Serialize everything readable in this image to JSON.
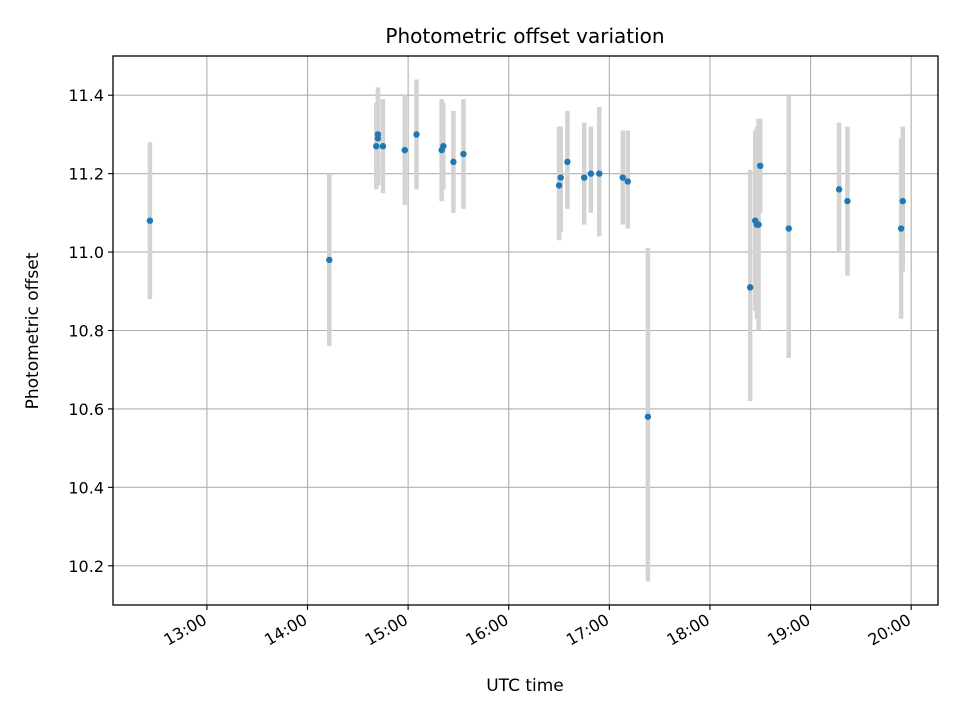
{
  "chart_data": {
    "type": "scatter",
    "title": "Photometric offset variation",
    "xlabel": "UTC time",
    "ylabel": "Photometric offset",
    "xlim": [
      "12:04",
      "20:16"
    ],
    "ylim": [
      10.1,
      11.5
    ],
    "grid": true,
    "x_ticks": [
      "13:00",
      "14:00",
      "15:00",
      "16:00",
      "17:00",
      "18:00",
      "19:00",
      "20:00"
    ],
    "y_ticks": [
      "10.2",
      "10.4",
      "10.6",
      "10.8",
      "11.0",
      "11.2",
      "11.4"
    ],
    "colors": {
      "points": "#1f77b4",
      "error_bars": "#d3d3d3",
      "grid": "#b0b0b0"
    },
    "series": [
      {
        "error_bars": true,
        "points": [
          {
            "x": "12:26",
            "y": 11.08,
            "lo": 10.88,
            "hi": 11.28
          },
          {
            "x": "14:13",
            "y": 10.98,
            "lo": 10.76,
            "hi": 11.2
          },
          {
            "x": "14:41",
            "y": 11.27,
            "lo": 11.16,
            "hi": 11.38
          },
          {
            "x": "14:42",
            "y": 11.3,
            "lo": 11.18,
            "hi": 11.42
          },
          {
            "x": "14:42",
            "y": 11.29,
            "lo": 11.17,
            "hi": 11.41
          },
          {
            "x": "14:45",
            "y": 11.27,
            "lo": 11.15,
            "hi": 11.39
          },
          {
            "x": "14:58",
            "y": 11.26,
            "lo": 11.12,
            "hi": 11.4
          },
          {
            "x": "15:05",
            "y": 11.3,
            "lo": 11.16,
            "hi": 11.44
          },
          {
            "x": "15:20",
            "y": 11.26,
            "lo": 11.13,
            "hi": 11.39
          },
          {
            "x": "15:21",
            "y": 11.27,
            "lo": 11.16,
            "hi": 11.38
          },
          {
            "x": "15:27",
            "y": 11.23,
            "lo": 11.1,
            "hi": 11.36
          },
          {
            "x": "15:33",
            "y": 11.25,
            "lo": 11.11,
            "hi": 11.39
          },
          {
            "x": "16:30",
            "y": 11.17,
            "lo": 11.03,
            "hi": 11.32
          },
          {
            "x": "16:31",
            "y": 11.19,
            "lo": 11.05,
            "hi": 11.32
          },
          {
            "x": "16:35",
            "y": 11.23,
            "lo": 11.11,
            "hi": 11.36
          },
          {
            "x": "16:45",
            "y": 11.19,
            "lo": 11.07,
            "hi": 11.33
          },
          {
            "x": "16:49",
            "y": 11.2,
            "lo": 11.1,
            "hi": 11.32
          },
          {
            "x": "16:54",
            "y": 11.2,
            "lo": 11.04,
            "hi": 11.37
          },
          {
            "x": "17:08",
            "y": 11.19,
            "lo": 11.07,
            "hi": 11.31
          },
          {
            "x": "17:11",
            "y": 11.18,
            "lo": 11.06,
            "hi": 11.31
          },
          {
            "x": "17:23",
            "y": 10.58,
            "lo": 10.16,
            "hi": 11.01
          },
          {
            "x": "18:24",
            "y": 10.91,
            "lo": 10.62,
            "hi": 11.21
          },
          {
            "x": "18:27",
            "y": 11.08,
            "lo": 10.85,
            "hi": 11.31
          },
          {
            "x": "18:28",
            "y": 11.07,
            "lo": 10.83,
            "hi": 11.32
          },
          {
            "x": "18:29",
            "y": 11.07,
            "lo": 10.8,
            "hi": 11.34
          },
          {
            "x": "18:30",
            "y": 11.22,
            "lo": 11.1,
            "hi": 11.34
          },
          {
            "x": "18:47",
            "y": 11.06,
            "lo": 10.73,
            "hi": 11.4
          },
          {
            "x": "19:17",
            "y": 11.16,
            "lo": 11.0,
            "hi": 11.33
          },
          {
            "x": "19:22",
            "y": 11.13,
            "lo": 10.94,
            "hi": 11.32
          },
          {
            "x": "19:54",
            "y": 11.06,
            "lo": 10.83,
            "hi": 11.29
          },
          {
            "x": "19:55",
            "y": 11.13,
            "lo": 10.95,
            "hi": 11.32
          }
        ]
      }
    ]
  }
}
